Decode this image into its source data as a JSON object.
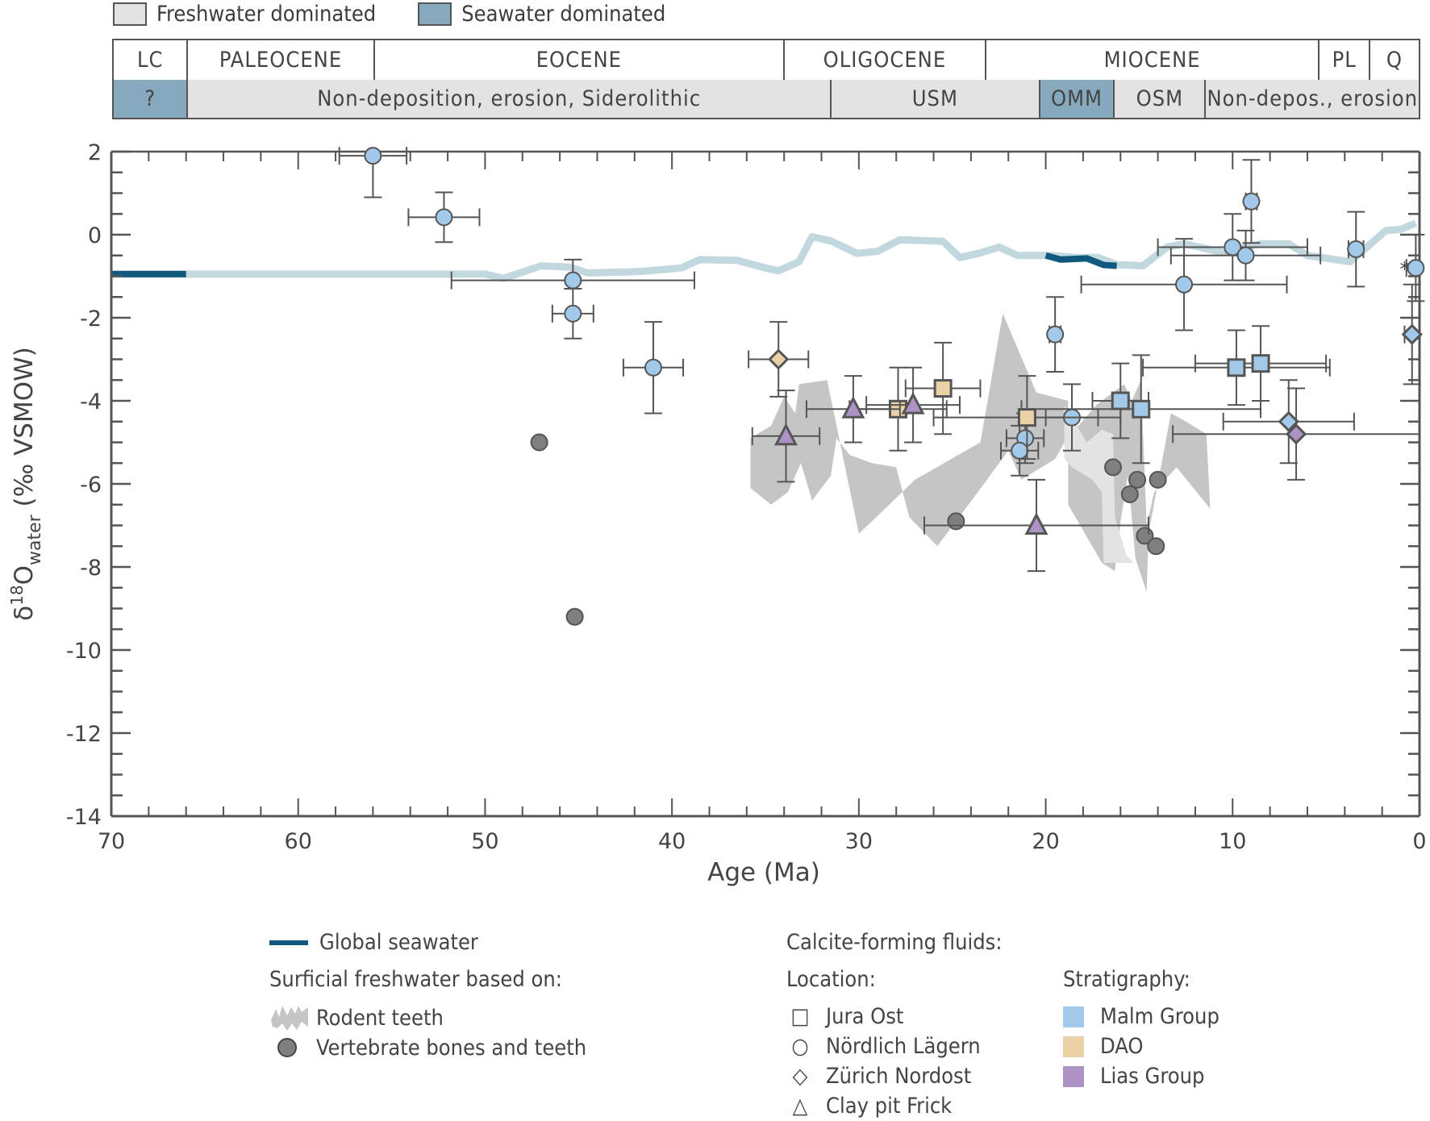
{
  "top_legend": [
    {
      "label": "Freshwater dominated",
      "color": "#e3e3e3"
    },
    {
      "label": "Seawater dominated",
      "color": "#86a9bd"
    }
  ],
  "epochs": [
    {
      "label": "LC",
      "from": 70,
      "to": 66
    },
    {
      "label": "PALEOCENE",
      "from": 66,
      "to": 56
    },
    {
      "label": "EOCENE",
      "from": 56,
      "to": 34
    },
    {
      "label": "OLIGOCENE",
      "from": 34,
      "to": 23.2
    },
    {
      "label": "MIOCENE",
      "from": 23.2,
      "to": 5.3
    },
    {
      "label": "PL",
      "from": 5.3,
      "to": 2.6
    },
    {
      "label": "Q",
      "from": 2.6,
      "to": 0
    }
  ],
  "units": [
    {
      "label": "?",
      "from": 70,
      "to": 66,
      "type": "seawater"
    },
    {
      "label": "Non-deposition, erosion, Siderolithic",
      "from": 66,
      "to": 31.5,
      "type": "freshwater"
    },
    {
      "label": "USM",
      "from": 31.5,
      "to": 20.3,
      "type": "freshwater"
    },
    {
      "label": "OMM",
      "from": 20.3,
      "to": 16.3,
      "type": "seawater"
    },
    {
      "label": "OSM",
      "from": 16.3,
      "to": 11.4,
      "type": "freshwater"
    },
    {
      "label": "Non-depos., erosion",
      "from": 11.4,
      "to": 0,
      "type": "freshwater"
    }
  ],
  "colors": {
    "malm": "#a3c9ea",
    "dao": "#ebd1a6",
    "lias": "#ad93c5",
    "vertebrate": "#7f7f7f",
    "rodent": "#c5c5c5",
    "rodent_light": "#e3e3e3",
    "seawater_dark": "#10587e",
    "seawater_light": "#c1d8df",
    "axis": "#555555"
  },
  "chart_data": {
    "type": "scatter",
    "xlabel": "Age (Ma)",
    "ylabel": "δ18O water (‰ VSMOW)",
    "ylabel_parts": {
      "delta": "δ",
      "sup": "18",
      "main": "O",
      "sub": "water",
      "unit": "(‰ VSMOW)"
    },
    "xlim": [
      70,
      0
    ],
    "ylim": [
      -14,
      2
    ],
    "xticks": [
      70,
      60,
      50,
      40,
      30,
      20,
      10,
      0
    ],
    "xtick_labels": [
      "70",
      "60",
      "50",
      "40",
      "30",
      "20",
      "10",
      "0"
    ],
    "yticks": [
      2,
      0,
      -2,
      -4,
      -6,
      -8,
      -10,
      -12,
      -14
    ],
    "ytick_labels": [
      "2",
      "0",
      "-2",
      "-4",
      "-6",
      "-8",
      "-10",
      "-12",
      "-14"
    ],
    "annotation": "*",
    "seawater_curve": [
      [
        70,
        -0.95
      ],
      [
        66,
        -0.95
      ],
      [
        60,
        -0.95
      ],
      [
        55,
        -0.95
      ],
      [
        50,
        -0.95
      ],
      [
        49,
        -1.05
      ],
      [
        47,
        -0.75
      ],
      [
        45.5,
        -0.78
      ],
      [
        44.5,
        -0.92
      ],
      [
        42.5,
        -0.9
      ],
      [
        41.5,
        -0.88
      ],
      [
        39.5,
        -0.8
      ],
      [
        38.5,
        -0.6
      ],
      [
        36.5,
        -0.62
      ],
      [
        35,
        -0.8
      ],
      [
        34.3,
        -0.87
      ],
      [
        33.2,
        -0.65
      ],
      [
        32.5,
        -0.05
      ],
      [
        31.5,
        -0.15
      ],
      [
        30.1,
        -0.45
      ],
      [
        29,
        -0.4
      ],
      [
        27.8,
        -0.12
      ],
      [
        25.5,
        -0.16
      ],
      [
        24.6,
        -0.55
      ],
      [
        23.6,
        -0.45
      ],
      [
        22.5,
        -0.3
      ],
      [
        21.5,
        -0.5
      ],
      [
        20.2,
        -0.5
      ],
      [
        19.7,
        -0.5
      ],
      [
        18.3,
        -0.55
      ],
      [
        17.2,
        -0.55
      ],
      [
        16.2,
        -0.72
      ],
      [
        14.8,
        -0.75
      ],
      [
        13.5,
        -0.3
      ],
      [
        12.6,
        -0.22
      ],
      [
        11.3,
        -0.35
      ],
      [
        10.5,
        -0.43
      ],
      [
        8.5,
        -0.22
      ],
      [
        7.0,
        -0.22
      ],
      [
        6.0,
        -0.5
      ],
      [
        4.5,
        -0.6
      ],
      [
        3.7,
        -0.65
      ],
      [
        1.8,
        0.1
      ],
      [
        1.0,
        0.13
      ],
      [
        0.2,
        0.28
      ]
    ],
    "seawater_dark_segments": [
      [
        [
          70,
          -0.95
        ],
        [
          66,
          -0.95
        ]
      ],
      [
        [
          20.0,
          -0.5
        ],
        [
          19.2,
          -0.6
        ],
        [
          17.8,
          -0.57
        ],
        [
          16.9,
          -0.73
        ],
        [
          16.2,
          -0.75
        ]
      ]
    ],
    "rodent_teeth_dark": [
      [
        35.8,
        -4.9
      ],
      [
        34.7,
        -4.6
      ],
      [
        34.0,
        -3.9
      ],
      [
        33.4,
        -4.3
      ],
      [
        33.2,
        -3.6
      ],
      [
        31.7,
        -3.5
      ],
      [
        30.0,
        -7.2
      ],
      [
        28.6,
        -6.6
      ],
      [
        27.0,
        -5.9
      ],
      [
        23.5,
        -5.0
      ],
      [
        22.3,
        -1.9
      ],
      [
        20.5,
        -3.8
      ],
      [
        18.8,
        -4.0
      ],
      [
        18.8,
        -6.5
      ],
      [
        17.0,
        -7.9
      ],
      [
        16.3,
        -8.1
      ],
      [
        16.0,
        -6.9
      ],
      [
        15.6,
        -5.8
      ],
      [
        15.2,
        -7.8
      ],
      [
        14.6,
        -8.6
      ],
      [
        14.5,
        -7.2
      ],
      [
        13.3,
        -4.3
      ],
      [
        12.5,
        -4.5
      ],
      [
        11.4,
        -4.8
      ],
      [
        11.2,
        -6.6
      ],
      [
        13.0,
        -5.6
      ],
      [
        14.2,
        -6.2
      ],
      [
        14.6,
        -7.0
      ],
      [
        14.9,
        -3.5
      ],
      [
        15.4,
        -4.0
      ],
      [
        15.8,
        -3.6
      ],
      [
        17.3,
        -4.1
      ],
      [
        19.0,
        -5.0
      ],
      [
        19.5,
        -5.4
      ],
      [
        21.3,
        -5.9
      ],
      [
        22.0,
        -5.2
      ],
      [
        23.8,
        -6.3
      ],
      [
        25.8,
        -7.5
      ],
      [
        27.3,
        -6.8
      ],
      [
        28.0,
        -5.6
      ],
      [
        29.3,
        -5.5
      ],
      [
        30.5,
        -5.3
      ],
      [
        31.2,
        -4.9
      ],
      [
        31.5,
        -5.8
      ],
      [
        32.5,
        -6.4
      ],
      [
        33.1,
        -5.5
      ],
      [
        33.8,
        -6.2
      ],
      [
        34.7,
        -6.5
      ],
      [
        35.8,
        -6.1
      ]
    ],
    "rodent_teeth_light": [
      [
        19.0,
        -4.1
      ],
      [
        17.8,
        -5.0
      ],
      [
        17.0,
        -4.7
      ],
      [
        16.4,
        -4.8
      ],
      [
        16.3,
        -6.8
      ],
      [
        15.7,
        -7.7
      ],
      [
        15.3,
        -7.9
      ],
      [
        16.9,
        -7.9
      ],
      [
        17.0,
        -6.2
      ],
      [
        17.5,
        -5.9
      ],
      [
        18.6,
        -5.6
      ],
      [
        19.0,
        -5.4
      ]
    ],
    "series": [
      {
        "name": "Vertebrate bones and teeth",
        "marker": "circle",
        "fill": "vertebrate",
        "points": [
          {
            "x": 47.1,
            "y": -5.0
          },
          {
            "x": 45.2,
            "y": -9.2
          },
          {
            "x": 24.8,
            "y": -6.9
          },
          {
            "x": 16.4,
            "y": -5.6
          },
          {
            "x": 15.1,
            "y": -5.9
          },
          {
            "x": 14.0,
            "y": -5.9
          },
          {
            "x": 15.5,
            "y": -6.25
          },
          {
            "x": 14.7,
            "y": -7.25
          },
          {
            "x": 14.1,
            "y": -7.5
          }
        ]
      },
      {
        "name": "Nördlich Lägern – Malm Group",
        "marker": "circle",
        "fill": "malm",
        "points": [
          {
            "x": 56.0,
            "y": 1.9,
            "xerr": [
              1.8,
              1.8
            ],
            "yerr": [
              1.0,
              0
            ]
          },
          {
            "x": 52.2,
            "y": 0.42,
            "xerr": [
              1.9,
              1.9
            ],
            "yerr": [
              0.6,
              0.6
            ]
          },
          {
            "x": 45.3,
            "y": -1.1,
            "xerr": [
              6.5,
              6.5
            ],
            "yerr": [
              0.2,
              0.5
            ]
          },
          {
            "x": 45.3,
            "y": -1.9,
            "xerr": [
              1.1,
              1.1
            ],
            "yerr": [
              0.6,
              0.6
            ]
          },
          {
            "x": 41.0,
            "y": -3.2,
            "xerr": [
              1.6,
              1.6
            ],
            "yerr": [
              1.1,
              1.1
            ]
          },
          {
            "x": 21.1,
            "y": -4.9,
            "xerr": [
              1.0,
              1.0
            ],
            "yerr": [
              0.6,
              0.6
            ]
          },
          {
            "x": 21.4,
            "y": -5.2,
            "xerr": [
              1.0,
              1.0
            ],
            "yerr": [
              0.6,
              0.6
            ]
          },
          {
            "x": 19.5,
            "y": -2.4,
            "xerr": [
              0.3,
              0.3
            ],
            "yerr": [
              0.9,
              0.9
            ]
          },
          {
            "x": 18.6,
            "y": -4.4,
            "xerr": [
              1.4,
              1.4
            ],
            "yerr": [
              0.8,
              0.8
            ]
          },
          {
            "x": 12.6,
            "y": -1.2,
            "xerr": [
              5.5,
              5.5
            ],
            "yerr": [
              1.1,
              1.1
            ]
          },
          {
            "x": 10.0,
            "y": -0.3,
            "xerr": [
              4.0,
              4.0
            ],
            "yerr": [
              0.8,
              0.8
            ]
          },
          {
            "x": 9.3,
            "y": -0.5,
            "xerr": [
              4.0,
              4.0
            ],
            "yerr": [
              0.6,
              0.6
            ]
          },
          {
            "x": 9.0,
            "y": 0.8,
            "xerr": [
              0.3,
              0.3
            ],
            "yerr": [
              1.0,
              1.0
            ]
          },
          {
            "x": 3.4,
            "y": -0.35,
            "xerr": [
              0.4,
              0.4
            ],
            "yerr": [
              0.9,
              0.9
            ]
          },
          {
            "x": 0.2,
            "y": -0.8,
            "xerr": [
              0.5,
              0.2
            ],
            "yerr": [
              0.8,
              0.8
            ]
          }
        ]
      },
      {
        "name": "Jura Ost – Malm Group",
        "marker": "square",
        "fill": "malm",
        "points": [
          {
            "x": 16.0,
            "y": -4.0,
            "xerr": [
              1.5,
              1.5
            ],
            "yerr": [
              0.9,
              0.9
            ]
          },
          {
            "x": 14.9,
            "y": -4.2,
            "xerr": [
              6.4,
              6.4
            ],
            "yerr": [
              1.3,
              1.3
            ]
          },
          {
            "x": 9.8,
            "y": -3.2,
            "xerr": [
              5.0,
              5.0
            ],
            "yerr": [
              0.9,
              0.9
            ]
          },
          {
            "x": 8.5,
            "y": -3.1,
            "xerr": [
              3.5,
              3.5
            ],
            "yerr": [
              0.9,
              0.9
            ]
          }
        ]
      },
      {
        "name": "Jura Ost – DAO",
        "marker": "square",
        "fill": "dao",
        "points": [
          {
            "x": 27.9,
            "y": -4.2,
            "xerr": [
              2.6,
              2.6
            ],
            "yerr": [
              1.0,
              1.0
            ]
          },
          {
            "x": 25.5,
            "y": -3.7,
            "xerr": [
              2.0,
              2.0
            ],
            "yerr": [
              1.1,
              1.1
            ]
          },
          {
            "x": 21.0,
            "y": -4.4,
            "xerr": [
              5.0,
              5.0
            ],
            "yerr": [
              1.0,
              1.0
            ]
          }
        ]
      },
      {
        "name": "Zürich Nordost – DAO",
        "marker": "diamond",
        "fill": "dao",
        "points": [
          {
            "x": 34.3,
            "y": -3.0,
            "xerr": [
              1.6,
              1.6
            ],
            "yerr": [
              0.9,
              0.9
            ]
          }
        ]
      },
      {
        "name": "Zürich Nordost – Malm Group",
        "marker": "diamond",
        "fill": "malm",
        "points": [
          {
            "x": 7.0,
            "y": -4.5,
            "xerr": [
              3.5,
              3.5
            ],
            "yerr": [
              1.0,
              1.0
            ]
          },
          {
            "x": 0.4,
            "y": -2.4,
            "xerr": [
              0.4,
              0.4
            ],
            "yerr": [
              1.2,
              1.2
            ]
          }
        ]
      },
      {
        "name": "Zürich Nordost – Lias Group",
        "marker": "diamond",
        "fill": "lias",
        "points": [
          {
            "x": 6.6,
            "y": -4.8,
            "xerr": [
              6.6,
              6.6
            ],
            "yerr": [
              1.1,
              1.1
            ]
          }
        ]
      },
      {
        "name": "Clay pit Frick – Lias Group",
        "marker": "triangle",
        "fill": "lias",
        "points": [
          {
            "x": 33.9,
            "y": -4.85,
            "xerr": [
              1.8,
              1.8
            ],
            "yerr": [
              1.1,
              1.1
            ]
          },
          {
            "x": 30.3,
            "y": -4.2,
            "xerr": [
              2.5,
              2.5
            ],
            "yerr": [
              0.8,
              0.8
            ]
          },
          {
            "x": 27.1,
            "y": -4.1,
            "xerr": [
              2.5,
              2.5
            ],
            "yerr": [
              0.9,
              0.9
            ]
          },
          {
            "x": 20.5,
            "y": -7.0,
            "xerr": [
              6.0,
              6.0
            ],
            "yerr": [
              1.1,
              1.1
            ]
          }
        ]
      }
    ]
  },
  "legend": {
    "global_seawater": "Global seawater",
    "surficial_title": "Surficial freshwater based on:",
    "rodent": "Rodent teeth",
    "vertebrate": "Vertebrate bones and teeth",
    "calcite_title": "Calcite-forming fluids:",
    "location_title": "Location:",
    "locations": [
      {
        "marker": "□",
        "label": "Jura Ost"
      },
      {
        "marker": "○",
        "label": "Nördlich Lägern"
      },
      {
        "marker": "◇",
        "label": "Zürich Nordost"
      },
      {
        "marker": "△",
        "label": "Clay pit Frick"
      }
    ],
    "strat_title": "Stratigraphy:",
    "stratigraphy": [
      {
        "label": "Malm Group",
        "color": "#a3c9ea"
      },
      {
        "label": "DAO",
        "color": "#ebd1a6"
      },
      {
        "label": "Lias Group",
        "color": "#ad93c5"
      }
    ]
  }
}
